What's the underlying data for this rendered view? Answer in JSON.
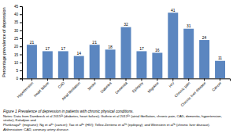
{
  "chart_data": {
    "type": "bar",
    "ylabel": "Percentage prevalence of depression",
    "categories": [
      "Hypertension",
      "Heart failure",
      "CAD",
      "Atrial fibrillation",
      "Stroke",
      "Diabetes",
      "Dementia",
      "Epilepsy",
      "Migraine",
      "HIV",
      "Chronic pain",
      "Chronic liver disease",
      "Cancer"
    ],
    "values": [
      21,
      17,
      17,
      14,
      21,
      18,
      32,
      17,
      16,
      41,
      31,
      24,
      11
    ],
    "color": "#5B86C0",
    "ylim": [
      0,
      45
    ],
    "yticks": [
      0,
      5,
      10,
      15,
      20,
      25,
      30,
      35,
      40,
      45
    ],
    "data_labels": true,
    "grid": false,
    "annotations": [
      "Figure 1 Prevalence of depression in patients with chronic physical conditions.",
      "Notes: Data from Dambreck et al 2015²¹ (diabetes, heart failure); Guthrie et al 2012²⁶ (atrial fibrillation, chronic pain, CAD, dementia, hypertension, stroke); Kaludjian and",
      "Plunknaga²⁷ (migraine); Ng et al²⁸ (cancer); Tao et al²⁹ (HIV); Tellez-Zenteno et al³⁰ (epilepsy); and Weinstein et al³¹ (chronic liver disease).",
      "Abbreviation: CAD, coronary artery disease."
    ]
  }
}
